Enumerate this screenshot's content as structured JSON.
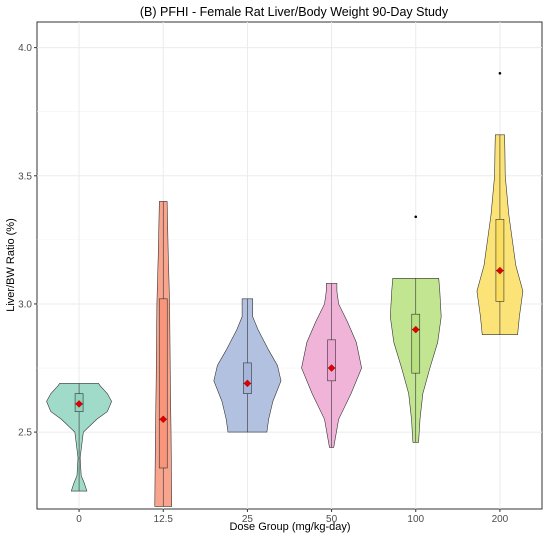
{
  "chart_data": {
    "type": "violin",
    "title": "(B) PFHI - Female Rat Liver/Body Weight 90-Day Study",
    "xlabel": "Dose Group (mg/kg-day)",
    "ylabel": "Liver/BW Ratio (%)",
    "ylim": [
      2.2,
      4.1
    ],
    "yticks": [
      "2.5",
      "3.0",
      "3.5",
      "4.0"
    ],
    "ytick_values": [
      2.5,
      3.0,
      3.5,
      4.0
    ],
    "grid": true,
    "categories": [
      "0",
      "12.5",
      "25",
      "50",
      "100",
      "200"
    ],
    "groups": [
      {
        "label": "0",
        "color": "#8fd4be",
        "min": 2.27,
        "q1": 2.58,
        "median": 2.61,
        "q3": 2.65,
        "max": 2.69,
        "mean": 2.61,
        "violin_profile": [
          [
            2.27,
            0.22
          ],
          [
            2.3,
            0.15
          ],
          [
            2.33,
            0.06
          ],
          [
            2.4,
            0.03
          ],
          [
            2.5,
            0.12
          ],
          [
            2.55,
            0.5
          ],
          [
            2.58,
            0.8
          ],
          [
            2.62,
            0.92
          ],
          [
            2.65,
            0.8
          ],
          [
            2.68,
            0.6
          ],
          [
            2.69,
            0.55
          ]
        ],
        "outliers": []
      },
      {
        "label": "12.5",
        "color": "#f8957a",
        "min": 2.21,
        "q1": 2.36,
        "median": 2.55,
        "q3": 3.02,
        "max": 3.4,
        "mean": 2.55,
        "violin_profile": [
          [
            2.21,
            0.24
          ],
          [
            2.5,
            0.22
          ],
          [
            2.7,
            0.2
          ],
          [
            3.0,
            0.18
          ],
          [
            3.2,
            0.14
          ],
          [
            3.4,
            0.11
          ]
        ],
        "outliers": []
      },
      {
        "label": "25",
        "color": "#a6b6db",
        "min": 2.5,
        "q1": 2.65,
        "median": 2.69,
        "q3": 2.77,
        "max": 3.02,
        "mean": 2.69,
        "violin_profile": [
          [
            2.5,
            0.55
          ],
          [
            2.55,
            0.6
          ],
          [
            2.62,
            0.72
          ],
          [
            2.7,
            0.95
          ],
          [
            2.76,
            0.85
          ],
          [
            2.82,
            0.6
          ],
          [
            2.9,
            0.3
          ],
          [
            2.95,
            0.15
          ],
          [
            3.0,
            0.15
          ],
          [
            3.02,
            0.15
          ]
        ],
        "outliers": []
      },
      {
        "label": "50",
        "color": "#eda7d2",
        "min": 2.44,
        "q1": 2.7,
        "median": 2.75,
        "q3": 2.86,
        "max": 3.08,
        "mean": 2.75,
        "violin_profile": [
          [
            2.44,
            0.06
          ],
          [
            2.55,
            0.2
          ],
          [
            2.65,
            0.55
          ],
          [
            2.75,
            0.85
          ],
          [
            2.85,
            0.7
          ],
          [
            2.93,
            0.45
          ],
          [
            3.0,
            0.2
          ],
          [
            3.05,
            0.15
          ],
          [
            3.08,
            0.15
          ]
        ],
        "outliers": []
      },
      {
        "label": "100",
        "color": "#b7e07e",
        "min": 2.46,
        "q1": 2.73,
        "median": 2.9,
        "q3": 2.96,
        "max": 3.1,
        "mean": 2.9,
        "violin_profile": [
          [
            2.46,
            0.08
          ],
          [
            2.55,
            0.12
          ],
          [
            2.65,
            0.2
          ],
          [
            2.75,
            0.4
          ],
          [
            2.85,
            0.62
          ],
          [
            2.95,
            0.72
          ],
          [
            3.05,
            0.68
          ],
          [
            3.1,
            0.65
          ]
        ],
        "outliers": [
          3.34
        ]
      },
      {
        "label": "200",
        "color": "#fbde5f",
        "min": 2.88,
        "q1": 3.01,
        "median": 3.13,
        "q3": 3.33,
        "max": 3.66,
        "mean": 3.13,
        "violin_profile": [
          [
            2.88,
            0.5
          ],
          [
            2.95,
            0.55
          ],
          [
            3.05,
            0.65
          ],
          [
            3.15,
            0.45
          ],
          [
            3.25,
            0.35
          ],
          [
            3.35,
            0.25
          ],
          [
            3.5,
            0.15
          ],
          [
            3.6,
            0.14
          ],
          [
            3.66,
            0.13
          ]
        ],
        "outliers": [
          3.9
        ]
      }
    ]
  }
}
